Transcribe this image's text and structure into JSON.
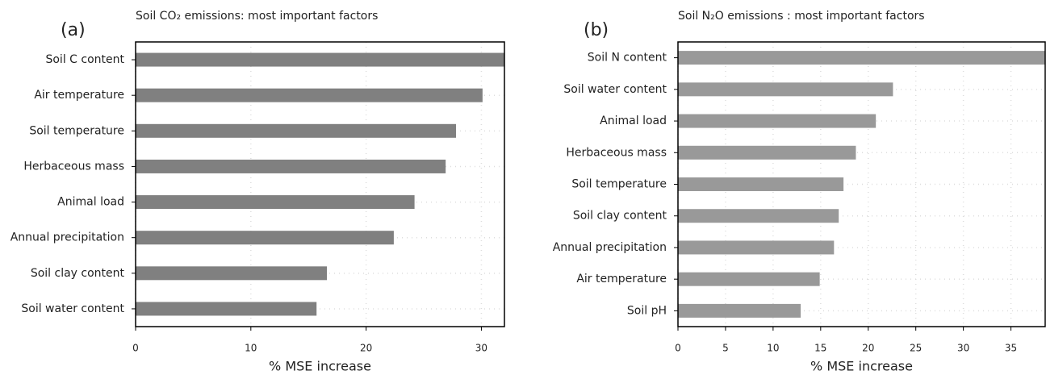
{
  "chart_data": [
    {
      "type": "bar",
      "orientation": "horizontal",
      "label": "(a)",
      "title": "Soil CO₂ emissions: most important factors",
      "x_label": "% MSE increase",
      "categories": [
        "Soil C content",
        "Air temperature",
        "Soil temperature",
        "Herbaceous mass",
        "Animal load",
        "Annual precipitation",
        "Soil clay content",
        "Soil water content"
      ],
      "values": [
        32,
        30.1,
        27.8,
        26.9,
        24.2,
        22.4,
        16.6,
        15.7
      ],
      "color": "#808080",
      "xlim": [
        0,
        32
      ],
      "xticks": [
        0,
        10,
        20,
        30
      ],
      "grid": true
    },
    {
      "type": "bar",
      "orientation": "horizontal",
      "label": "(b)",
      "title": "Soil N₂O emissions : most important factors",
      "x_label": "% MSE increase",
      "categories": [
        "Soil N content",
        "Soil water content",
        "Animal load",
        "Herbaceous mass",
        "Soil temperature",
        "Soil clay content",
        "Annual precipitation",
        "Air temperature",
        "Soil pH"
      ],
      "values": [
        38.6,
        22.6,
        20.8,
        18.7,
        17.4,
        16.9,
        16.4,
        14.9,
        12.9
      ],
      "color": "#999999",
      "xlim": [
        0,
        38.6
      ],
      "xticks": [
        0,
        5,
        10,
        15,
        20,
        25,
        30,
        35
      ],
      "grid": true
    }
  ]
}
